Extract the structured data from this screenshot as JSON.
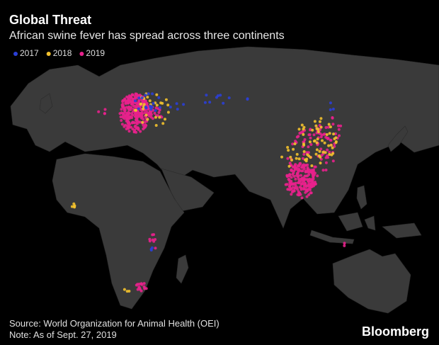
{
  "header": {
    "title": "Global Threat",
    "subtitle": "African swine fever has spread across three continents"
  },
  "legend": [
    {
      "label": "2017",
      "color": "#2b3fd6"
    },
    {
      "label": "2018",
      "color": "#f2c12e"
    },
    {
      "label": "2019",
      "color": "#e8218c"
    }
  ],
  "footer": {
    "source": "Source: World Organization for Animal Health (OEI)",
    "note": "Note: As of Sept. 27, 2019",
    "brand": "Bloomberg"
  }
}
